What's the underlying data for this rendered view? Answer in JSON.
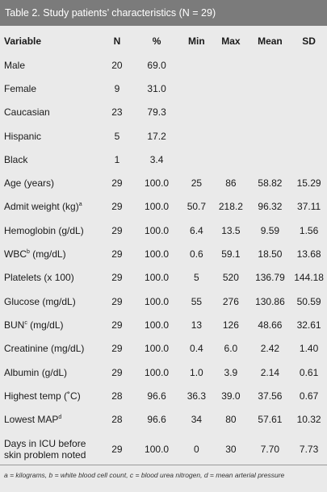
{
  "title": "Table 2. Study patients’ characteristics (N = 29)",
  "headers": {
    "variable": "Variable",
    "n": "N",
    "pct": "%",
    "min": "Min",
    "max": "Max",
    "mean": "Mean",
    "sd": "SD"
  },
  "rows": [
    {
      "variable": "Male",
      "n": "20",
      "pct": "69.0",
      "min": "",
      "max": "",
      "mean": "",
      "sd": ""
    },
    {
      "variable": "Female",
      "n": "9",
      "pct": "31.0",
      "min": "",
      "max": "",
      "mean": "",
      "sd": ""
    },
    {
      "variable": "Caucasian",
      "n": "23",
      "pct": "79.3",
      "min": "",
      "max": "",
      "mean": "",
      "sd": ""
    },
    {
      "variable": "Hispanic",
      "n": "5",
      "pct": "17.2",
      "min": "",
      "max": "",
      "mean": "",
      "sd": ""
    },
    {
      "variable": "Black",
      "n": "1",
      "pct": "3.4",
      "min": "",
      "max": "",
      "mean": "",
      "sd": ""
    },
    {
      "variable": "Age (years)",
      "n": "29",
      "pct": "100.0",
      "min": "25",
      "max": "86",
      "mean": "58.82",
      "sd": "15.29"
    },
    {
      "variable": "Admit weight (kg)",
      "sup": "a",
      "n": "29",
      "pct": "100.0",
      "min": "50.7",
      "max": "218.2",
      "mean": "96.32",
      "sd": "37.11"
    },
    {
      "variable": "Hemoglobin (g/dL)",
      "n": "29",
      "pct": "100.0",
      "min": "6.4",
      "max": "13.5",
      "mean": "9.59",
      "sd": "1.56"
    },
    {
      "variable": "WBC",
      "sup": "b",
      "suffix": " (mg/dL)",
      "n": "29",
      "pct": "100.0",
      "min": "0.6",
      "max": "59.1",
      "mean": "18.50",
      "sd": "13.68"
    },
    {
      "variable": "Platelets (x 100)",
      "n": "29",
      "pct": "100.0",
      "min": "5",
      "max": "520",
      "mean": "136.79",
      "sd": "144.18"
    },
    {
      "variable": "Glucose (mg/dL)",
      "n": "29",
      "pct": "100.0",
      "min": "55",
      "max": "276",
      "mean": "130.86",
      "sd": "50.59"
    },
    {
      "variable": "BUN",
      "sup": "c",
      "suffix": " (mg/dL)",
      "n": "29",
      "pct": "100.0",
      "min": "13",
      "max": "126",
      "mean": "48.66",
      "sd": "32.61"
    },
    {
      "variable": "Creatinine (mg/dL)",
      "n": "29",
      "pct": "100.0",
      "min": "0.4",
      "max": "6.0",
      "mean": "2.42",
      "sd": "1.40"
    },
    {
      "variable": "Albumin (g/dL)",
      "n": "29",
      "pct": "100.0",
      "min": "1.0",
      "max": "3.9",
      "mean": "2.14",
      "sd": "0.61"
    },
    {
      "variable": "Highest temp (˚C)",
      "n": "28",
      "pct": "96.6",
      "min": "36.3",
      "max": "39.0",
      "mean": "37.56",
      "sd": "0.67"
    },
    {
      "variable": "Lowest MAP",
      "sup": "d",
      "n": "28",
      "pct": "96.6",
      "min": "34",
      "max": "80",
      "mean": "57.61",
      "sd": "10.32"
    },
    {
      "variable": "Days in ICU before",
      "variable_line2": "skin problem noted",
      "n": "29",
      "pct": "100.0",
      "min": "0",
      "max": "30",
      "mean": "7.70",
      "sd": "7.73"
    }
  ],
  "footnote": "a = kilograms, b = white blood cell count, c = blood urea nitrogen, d = mean arterial pressure",
  "colors": {
    "title_bg": "#7b7b7b",
    "page_bg": "#eaeaea",
    "rule": "#9a9a9a"
  }
}
